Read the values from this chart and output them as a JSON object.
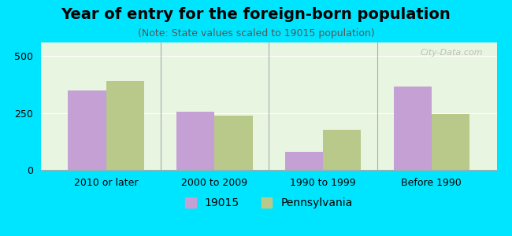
{
  "title": "Year of entry for the foreign-born population",
  "subtitle": "(Note: State values scaled to 19015 population)",
  "categories": [
    "2010 or later",
    "2000 to 2009",
    "1990 to 1999",
    "Before 1990"
  ],
  "values_19015": [
    350,
    255,
    80,
    365
  ],
  "values_pa": [
    390,
    240,
    175,
    245
  ],
  "color_19015": "#c4a0d4",
  "color_pa": "#b8c98a",
  "ylim": [
    0,
    560
  ],
  "yticks": [
    0,
    250,
    500
  ],
  "background_color": "#e8f5e0",
  "outer_background": "#00e5ff",
  "bar_width": 0.35,
  "legend_label_19015": "19015",
  "legend_label_pa": "Pennsylvania",
  "title_fontsize": 14,
  "subtitle_fontsize": 9,
  "tick_fontsize": 9,
  "legend_fontsize": 10
}
